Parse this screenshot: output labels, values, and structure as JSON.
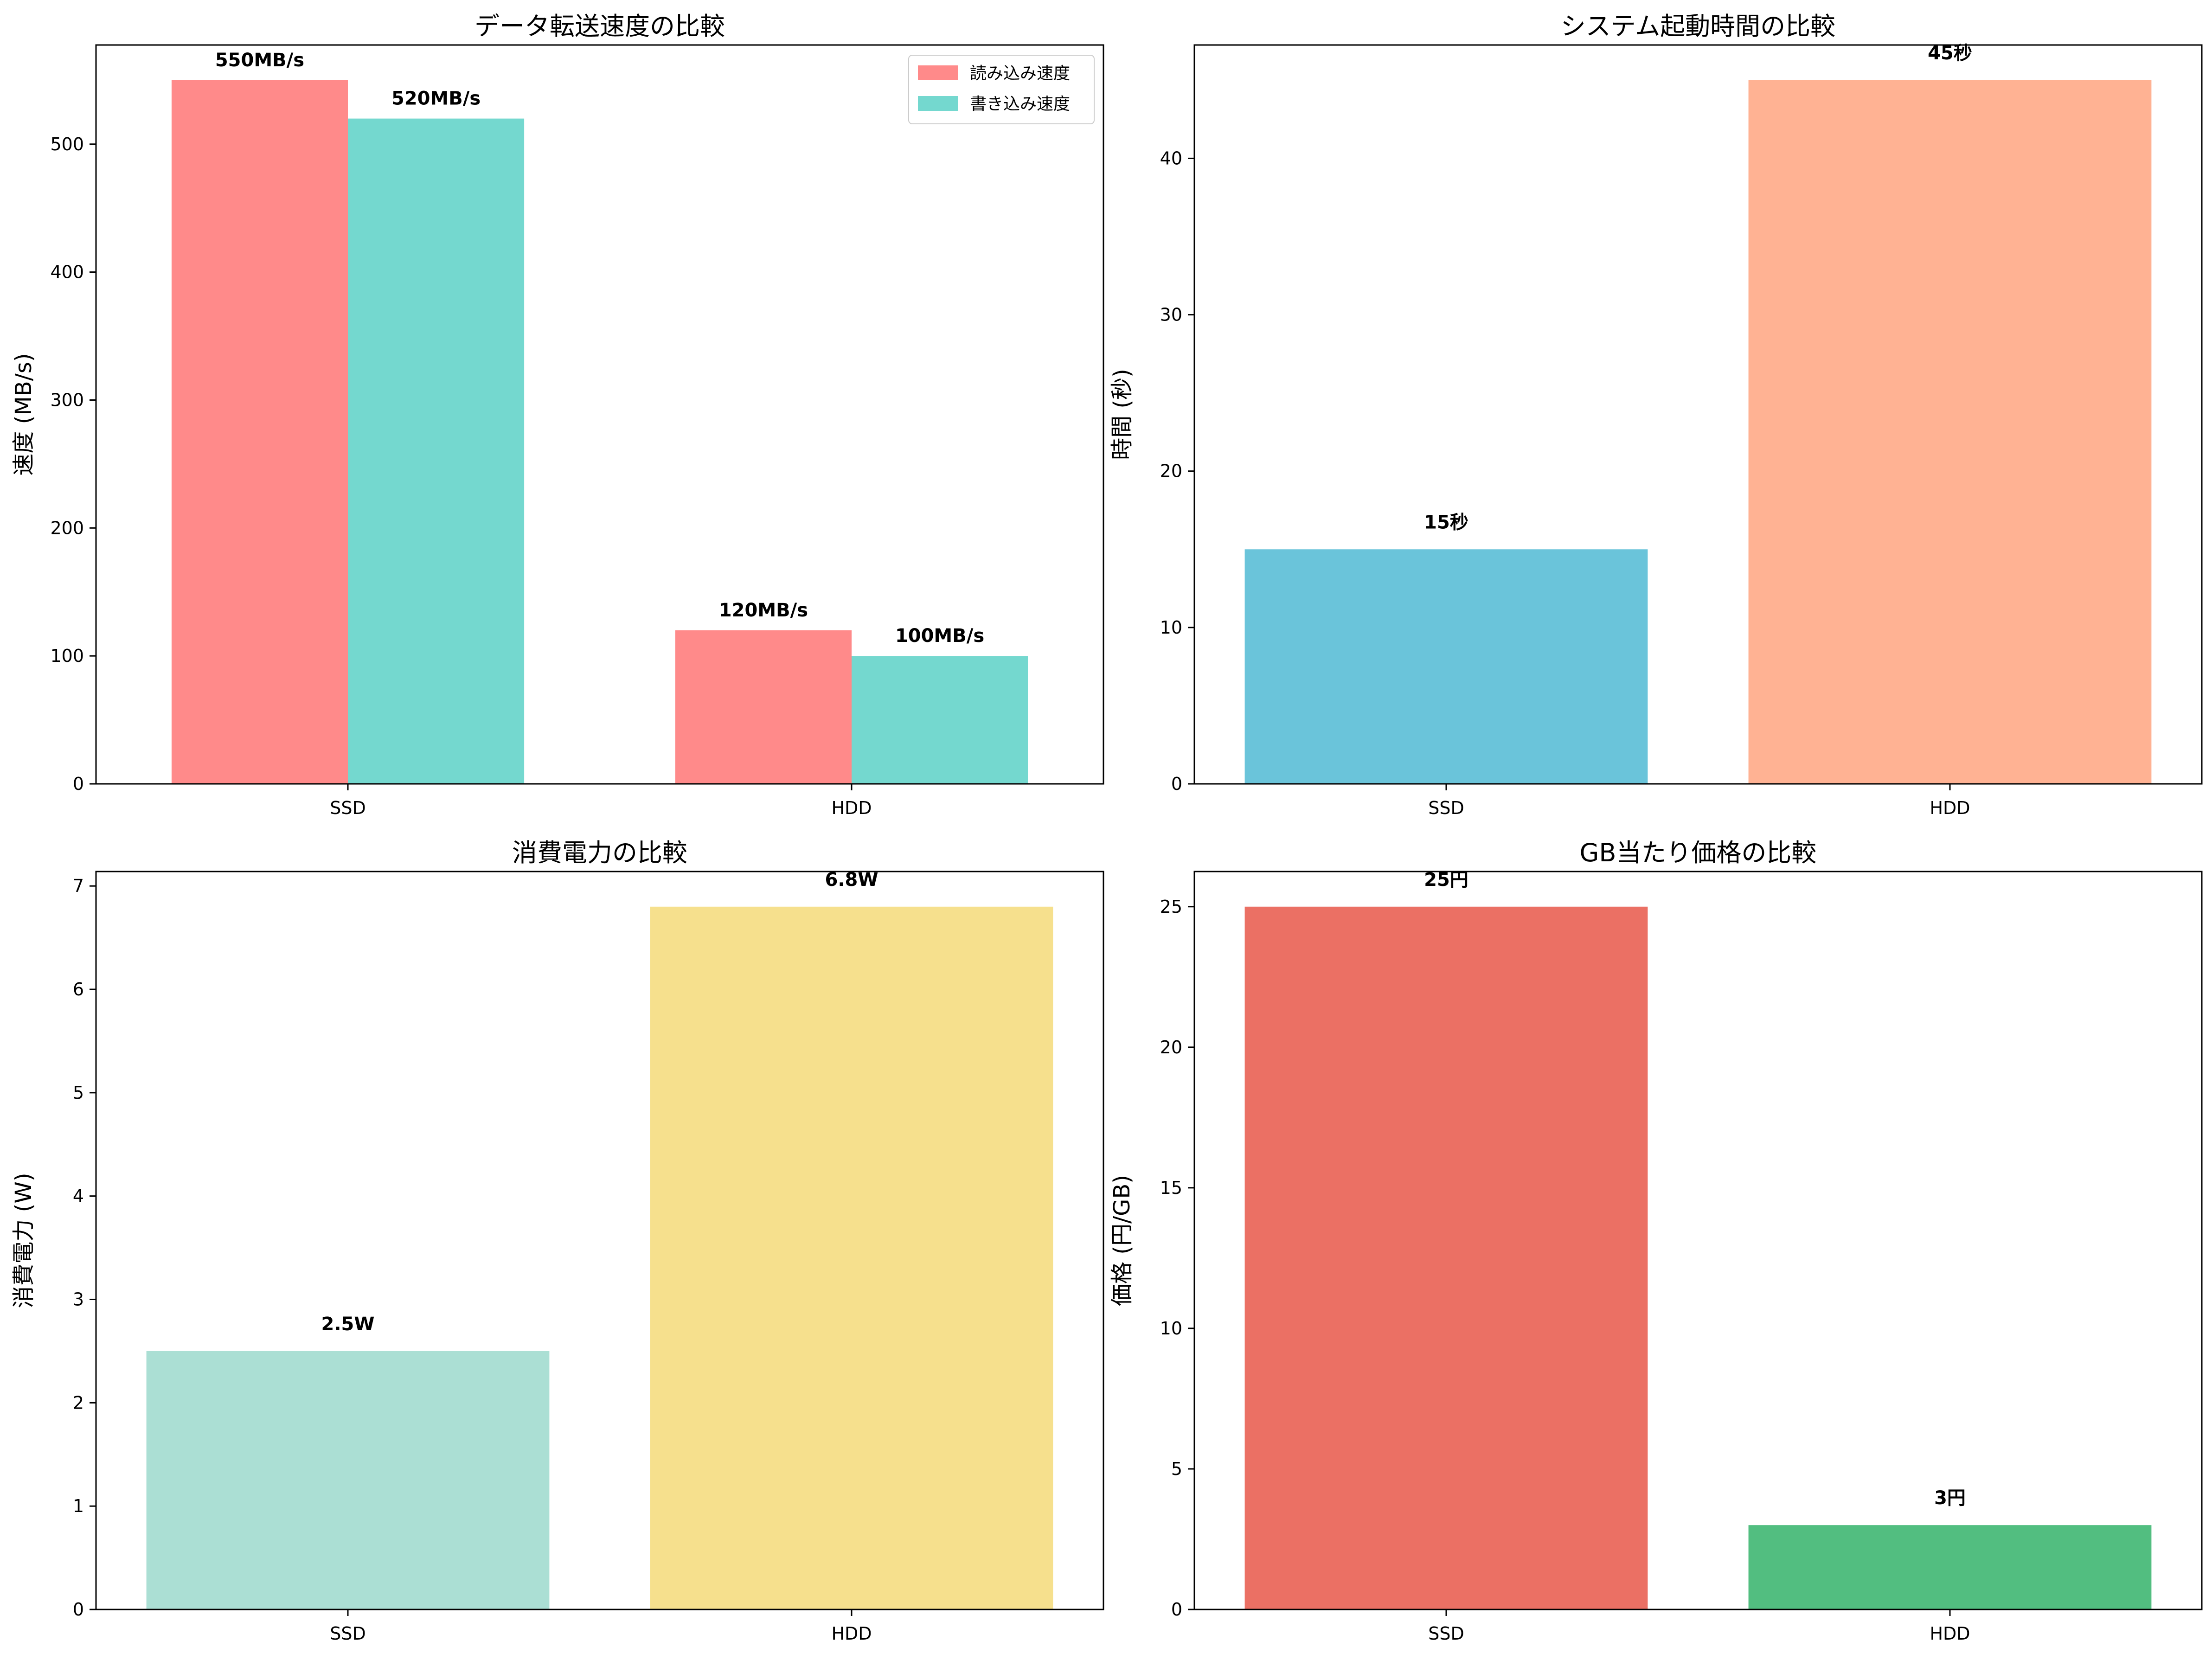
{
  "chart_data": [
    {
      "type": "bar",
      "title": "データ転送速度の比較",
      "xlabel": "",
      "ylabel": "速度 (MB/s)",
      "categories": [
        "SSD",
        "HDD"
      ],
      "series": [
        {
          "name": "読み込み速度",
          "values": [
            550,
            120
          ],
          "color": "#ff8a8a",
          "labels": [
            "550MB/s",
            "120MB/s"
          ]
        },
        {
          "name": "書き込み速度",
          "values": [
            520,
            100
          ],
          "color": "#74d8cf",
          "labels": [
            "520MB/s",
            "100MB/s"
          ]
        }
      ],
      "ylim": [
        0,
        577.5
      ],
      "yticks": [
        0,
        100,
        200,
        300,
        400,
        500
      ],
      "legend": "top-right",
      "grid": false
    },
    {
      "type": "bar",
      "title": "システム起動時間の比較",
      "xlabel": "",
      "ylabel": "時間 (秒)",
      "categories": [
        "SSD",
        "HDD"
      ],
      "values": [
        15,
        45
      ],
      "colors": [
        "#6ac4da",
        "#ffb293"
      ],
      "labels": [
        "15秒",
        "45秒"
      ],
      "ylim": [
        0,
        47.25
      ],
      "yticks": [
        0,
        10,
        20,
        30,
        40
      ],
      "grid": false
    },
    {
      "type": "bar",
      "title": "消費電力の比較",
      "xlabel": "",
      "ylabel": "消費電力 (W)",
      "categories": [
        "SSD",
        "HDD"
      ],
      "values": [
        2.5,
        6.8
      ],
      "colors": [
        "#abdfd4",
        "#f6e08d"
      ],
      "labels": [
        "2.5W",
        "6.8W"
      ],
      "ylim": [
        0,
        7.14
      ],
      "yticks": [
        0,
        1,
        2,
        3,
        4,
        5,
        6,
        7
      ],
      "grid": false
    },
    {
      "type": "bar",
      "title": "GB当たり価格の比較",
      "xlabel": "",
      "ylabel": "価格 (円/GB)",
      "categories": [
        "SSD",
        "HDD"
      ],
      "values": [
        25,
        3
      ],
      "colors": [
        "#eb7064",
        "#52be80"
      ],
      "labels": [
        "25円",
        "3円"
      ],
      "ylim": [
        0,
        26.25
      ],
      "yticks": [
        0,
        5,
        10,
        15,
        20,
        25
      ],
      "grid": false
    }
  ]
}
